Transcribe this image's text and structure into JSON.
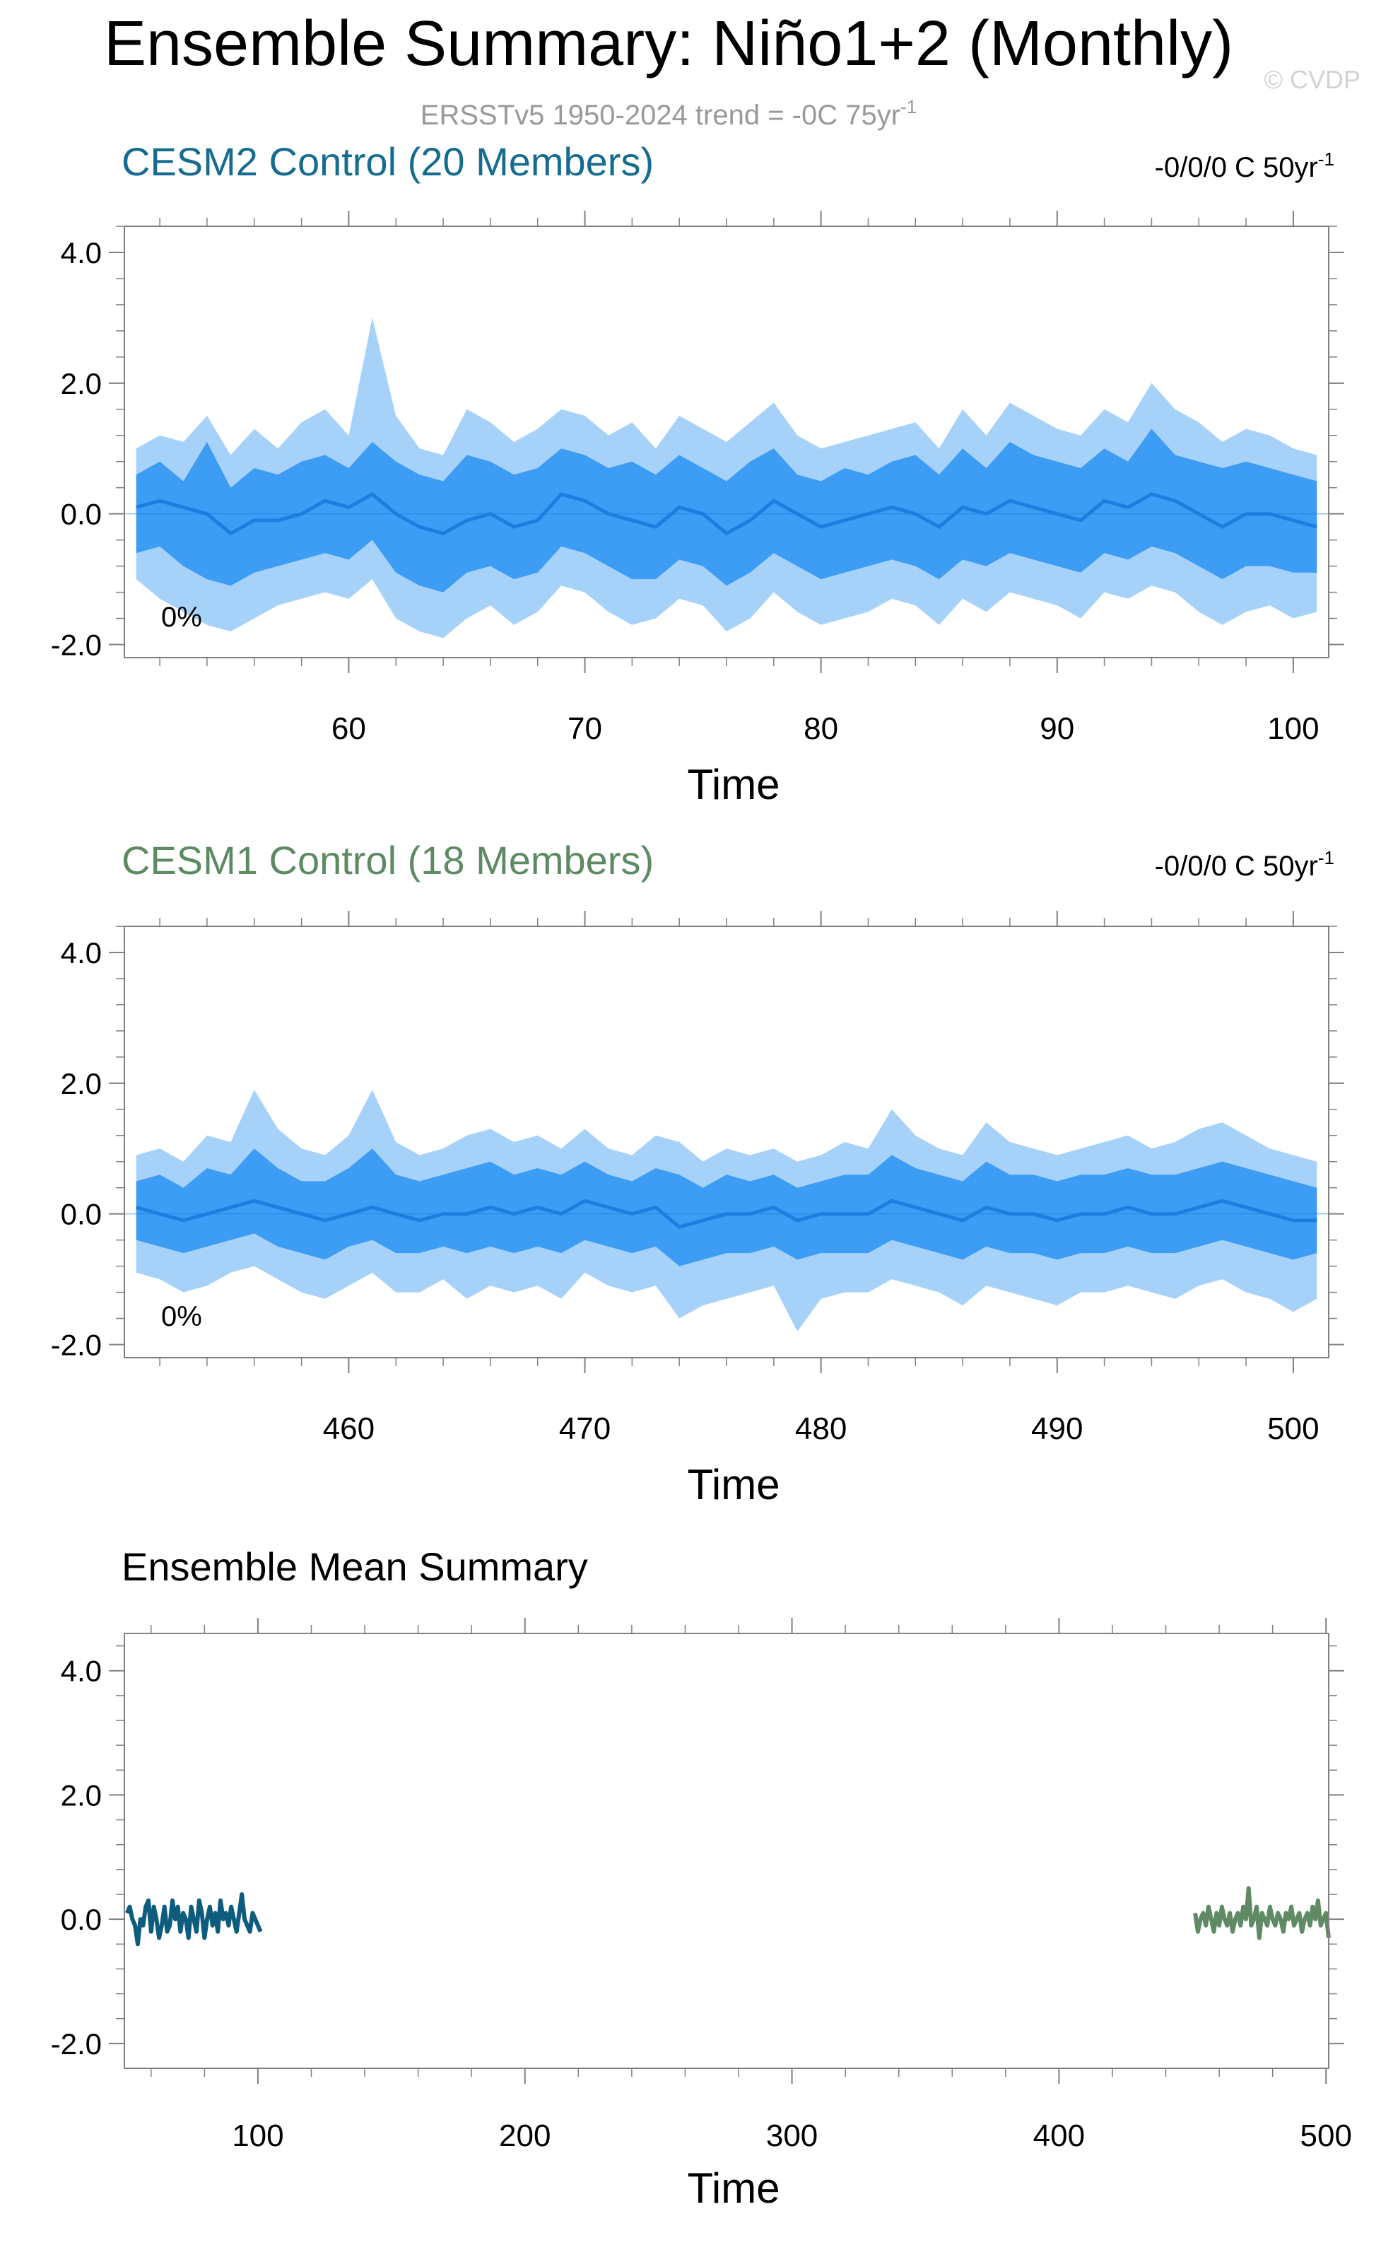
{
  "figure": {
    "title": "Ensemble Summary: Niño1+2 (Monthly)",
    "subtitle_prefix": "ERSSTv5 1950-2024 trend = -0C 75yr",
    "subtitle_sup": "-1",
    "watermark": "© CVDP"
  },
  "colors": {
    "title": "#000000",
    "subtitle": "#999999",
    "watermark": "#d3d3d3",
    "cesm2_label": "#156c8f",
    "cesm1_label": "#5e8a63",
    "band_outer": "#a6d2fa",
    "band_inner": "#3d9cf4",
    "mean_line": "#1c7fe0",
    "cesm2_series": "#0d5c7d",
    "cesm1_series": "#5f8a64",
    "axis": "#808080"
  },
  "chart_data": [
    {
      "type": "area",
      "title": "CESM2 Control (20 Members)",
      "trend_text": "-0/0/0 C 50yr",
      "trend_sup": "-1",
      "pct_label": "0%",
      "xlabel": "Time",
      "ylabel": "",
      "xlim": [
        50.5,
        101.5
      ],
      "ylim": [
        -2.2,
        4.4
      ],
      "xticks": [
        60,
        70,
        80,
        90,
        100
      ],
      "yticks": [
        4.0,
        2.0,
        0.0,
        -2.0
      ],
      "ytick_labels": [
        "4.0",
        "2.0",
        "0.0",
        "-2.0"
      ],
      "grid": false,
      "x": [
        51,
        52,
        53,
        54,
        55,
        56,
        57,
        58,
        59,
        60,
        61,
        62,
        63,
        64,
        65,
        66,
        67,
        68,
        69,
        70,
        71,
        72,
        73,
        74,
        75,
        76,
        77,
        78,
        79,
        80,
        81,
        82,
        83,
        84,
        85,
        86,
        87,
        88,
        89,
        90,
        91,
        92,
        93,
        94,
        95,
        96,
        97,
        98,
        99,
        100,
        101
      ],
      "series": [
        {
          "role": "outer_upper",
          "values": [
            1.0,
            1.2,
            1.1,
            1.5,
            0.9,
            1.3,
            1.0,
            1.4,
            1.6,
            1.2,
            3.0,
            1.5,
            1.0,
            0.9,
            1.6,
            1.4,
            1.1,
            1.3,
            1.6,
            1.5,
            1.2,
            1.4,
            1.0,
            1.5,
            1.3,
            1.1,
            1.4,
            1.7,
            1.2,
            1.0,
            1.1,
            1.2,
            1.3,
            1.4,
            1.0,
            1.6,
            1.2,
            1.7,
            1.5,
            1.3,
            1.2,
            1.6,
            1.4,
            2.0,
            1.6,
            1.4,
            1.1,
            1.3,
            1.2,
            1.0,
            0.9
          ]
        },
        {
          "role": "inner_upper",
          "values": [
            0.6,
            0.8,
            0.5,
            1.1,
            0.4,
            0.7,
            0.6,
            0.8,
            0.9,
            0.7,
            1.1,
            0.8,
            0.6,
            0.5,
            0.9,
            0.8,
            0.6,
            0.7,
            1.0,
            0.9,
            0.7,
            0.8,
            0.6,
            0.9,
            0.7,
            0.5,
            0.8,
            1.0,
            0.6,
            0.5,
            0.7,
            0.6,
            0.8,
            0.9,
            0.6,
            1.0,
            0.7,
            1.1,
            0.9,
            0.8,
            0.7,
            1.0,
            0.8,
            1.3,
            0.9,
            0.8,
            0.7,
            0.8,
            0.7,
            0.6,
            0.5
          ]
        },
        {
          "role": "mean",
          "values": [
            0.1,
            0.2,
            0.1,
            0.0,
            -0.3,
            -0.1,
            -0.1,
            0.0,
            0.2,
            0.1,
            0.3,
            0.0,
            -0.2,
            -0.3,
            -0.1,
            0.0,
            -0.2,
            -0.1,
            0.3,
            0.2,
            0.0,
            -0.1,
            -0.2,
            0.1,
            0.0,
            -0.3,
            -0.1,
            0.2,
            0.0,
            -0.2,
            -0.1,
            0.0,
            0.1,
            0.0,
            -0.2,
            0.1,
            0.0,
            0.2,
            0.1,
            0.0,
            -0.1,
            0.2,
            0.1,
            0.3,
            0.2,
            0.0,
            -0.2,
            0.0,
            0.0,
            -0.1,
            -0.2
          ]
        },
        {
          "role": "inner_lower",
          "values": [
            -0.6,
            -0.5,
            -0.8,
            -1.0,
            -1.1,
            -0.9,
            -0.8,
            -0.7,
            -0.6,
            -0.7,
            -0.4,
            -0.9,
            -1.1,
            -1.2,
            -0.9,
            -0.8,
            -1.0,
            -0.9,
            -0.5,
            -0.6,
            -0.8,
            -1.0,
            -1.0,
            -0.7,
            -0.8,
            -1.1,
            -0.9,
            -0.6,
            -0.8,
            -1.0,
            -0.9,
            -0.8,
            -0.7,
            -0.8,
            -1.0,
            -0.7,
            -0.8,
            -0.6,
            -0.7,
            -0.8,
            -0.9,
            -0.6,
            -0.7,
            -0.5,
            -0.6,
            -0.8,
            -1.0,
            -0.8,
            -0.8,
            -0.9,
            -0.9
          ]
        },
        {
          "role": "outer_lower",
          "values": [
            -1.0,
            -1.3,
            -1.5,
            -1.7,
            -1.8,
            -1.6,
            -1.4,
            -1.3,
            -1.2,
            -1.3,
            -1.0,
            -1.6,
            -1.8,
            -1.9,
            -1.6,
            -1.4,
            -1.7,
            -1.5,
            -1.1,
            -1.2,
            -1.5,
            -1.7,
            -1.6,
            -1.3,
            -1.4,
            -1.8,
            -1.6,
            -1.2,
            -1.5,
            -1.7,
            -1.6,
            -1.5,
            -1.3,
            -1.4,
            -1.7,
            -1.3,
            -1.5,
            -1.2,
            -1.3,
            -1.4,
            -1.6,
            -1.2,
            -1.3,
            -1.1,
            -1.2,
            -1.5,
            -1.7,
            -1.5,
            -1.4,
            -1.6,
            -1.5
          ]
        }
      ]
    },
    {
      "type": "area",
      "title": "CESM1 Control (18 Members)",
      "trend_text": "-0/0/0 C 50yr",
      "trend_sup": "-1",
      "pct_label": "0%",
      "xlabel": "Time",
      "ylabel": "",
      "xlim": [
        450.5,
        501.5
      ],
      "ylim": [
        -2.2,
        4.4
      ],
      "xticks": [
        460,
        470,
        480,
        490,
        500
      ],
      "yticks": [
        4.0,
        2.0,
        0.0,
        -2.0
      ],
      "ytick_labels": [
        "4.0",
        "2.0",
        "0.0",
        "-2.0"
      ],
      "grid": false,
      "x": [
        451,
        452,
        453,
        454,
        455,
        456,
        457,
        458,
        459,
        460,
        461,
        462,
        463,
        464,
        465,
        466,
        467,
        468,
        469,
        470,
        471,
        472,
        473,
        474,
        475,
        476,
        477,
        478,
        479,
        480,
        481,
        482,
        483,
        484,
        485,
        486,
        487,
        488,
        489,
        490,
        491,
        492,
        493,
        494,
        495,
        496,
        497,
        498,
        499,
        500,
        501
      ],
      "series": [
        {
          "role": "outer_upper",
          "values": [
            0.9,
            1.0,
            0.8,
            1.2,
            1.1,
            1.9,
            1.3,
            1.0,
            0.9,
            1.2,
            1.9,
            1.1,
            0.9,
            1.0,
            1.2,
            1.3,
            1.1,
            1.2,
            1.0,
            1.3,
            1.0,
            0.9,
            1.2,
            1.1,
            0.8,
            1.0,
            0.9,
            1.0,
            0.8,
            0.9,
            1.1,
            1.0,
            1.6,
            1.2,
            1.0,
            0.9,
            1.4,
            1.1,
            1.0,
            0.9,
            1.0,
            1.1,
            1.2,
            1.0,
            1.1,
            1.3,
            1.4,
            1.2,
            1.0,
            0.9,
            0.8
          ]
        },
        {
          "role": "inner_upper",
          "values": [
            0.5,
            0.6,
            0.4,
            0.7,
            0.6,
            1.0,
            0.7,
            0.5,
            0.5,
            0.7,
            1.0,
            0.6,
            0.5,
            0.6,
            0.7,
            0.8,
            0.6,
            0.7,
            0.6,
            0.8,
            0.6,
            0.5,
            0.7,
            0.6,
            0.4,
            0.6,
            0.5,
            0.6,
            0.4,
            0.5,
            0.6,
            0.6,
            0.9,
            0.7,
            0.6,
            0.5,
            0.8,
            0.6,
            0.6,
            0.5,
            0.6,
            0.6,
            0.7,
            0.6,
            0.6,
            0.7,
            0.8,
            0.7,
            0.6,
            0.5,
            0.4
          ]
        },
        {
          "role": "mean",
          "values": [
            0.1,
            0.0,
            -0.1,
            0.0,
            0.1,
            0.2,
            0.1,
            0.0,
            -0.1,
            0.0,
            0.1,
            0.0,
            -0.1,
            0.0,
            0.0,
            0.1,
            0.0,
            0.1,
            0.0,
            0.2,
            0.1,
            0.0,
            0.1,
            -0.2,
            -0.1,
            0.0,
            0.0,
            0.1,
            -0.1,
            0.0,
            0.0,
            0.0,
            0.2,
            0.1,
            0.0,
            -0.1,
            0.1,
            0.0,
            0.0,
            -0.1,
            0.0,
            0.0,
            0.1,
            0.0,
            0.0,
            0.1,
            0.2,
            0.1,
            0.0,
            -0.1,
            -0.1
          ]
        },
        {
          "role": "inner_lower",
          "values": [
            -0.4,
            -0.5,
            -0.6,
            -0.5,
            -0.4,
            -0.3,
            -0.5,
            -0.6,
            -0.7,
            -0.5,
            -0.4,
            -0.6,
            -0.6,
            -0.5,
            -0.6,
            -0.5,
            -0.6,
            -0.5,
            -0.6,
            -0.4,
            -0.5,
            -0.6,
            -0.5,
            -0.8,
            -0.7,
            -0.6,
            -0.6,
            -0.5,
            -0.7,
            -0.6,
            -0.6,
            -0.6,
            -0.4,
            -0.5,
            -0.6,
            -0.7,
            -0.5,
            -0.6,
            -0.6,
            -0.7,
            -0.6,
            -0.6,
            -0.5,
            -0.6,
            -0.6,
            -0.5,
            -0.4,
            -0.5,
            -0.6,
            -0.7,
            -0.6
          ]
        },
        {
          "role": "outer_lower",
          "values": [
            -0.9,
            -1.0,
            -1.2,
            -1.1,
            -0.9,
            -0.8,
            -1.0,
            -1.2,
            -1.3,
            -1.1,
            -0.9,
            -1.2,
            -1.2,
            -1.0,
            -1.3,
            -1.1,
            -1.2,
            -1.1,
            -1.3,
            -0.9,
            -1.1,
            -1.2,
            -1.1,
            -1.6,
            -1.4,
            -1.3,
            -1.2,
            -1.1,
            -1.8,
            -1.3,
            -1.2,
            -1.2,
            -1.0,
            -1.1,
            -1.2,
            -1.4,
            -1.1,
            -1.2,
            -1.3,
            -1.4,
            -1.2,
            -1.2,
            -1.1,
            -1.2,
            -1.3,
            -1.1,
            -1.0,
            -1.2,
            -1.3,
            -1.5,
            -1.3
          ]
        }
      ]
    },
    {
      "type": "line",
      "title": "Ensemble Mean Summary",
      "xlabel": "Time",
      "ylabel": "",
      "xlim": [
        50,
        501
      ],
      "ylim": [
        -2.4,
        4.6
      ],
      "xticks": [
        100,
        200,
        300,
        400,
        500
      ],
      "yticks": [
        4.0,
        2.0,
        0.0,
        -2.0
      ],
      "ytick_labels": [
        "4.0",
        "2.0",
        "0.0",
        "-2.0"
      ],
      "grid": false,
      "series": [
        {
          "color_key": "cesm2_series",
          "x": [
            51,
            52,
            53,
            54,
            55,
            56,
            57,
            58,
            59,
            60,
            61,
            62,
            63,
            64,
            65,
            66,
            67,
            68,
            69,
            70,
            71,
            72,
            73,
            74,
            75,
            76,
            77,
            78,
            79,
            80,
            81,
            82,
            83,
            84,
            85,
            86,
            87,
            88,
            89,
            90,
            91,
            92,
            93,
            94,
            95,
            96,
            97,
            98,
            99,
            100,
            101
          ],
          "values": [
            0.1,
            0.2,
            0.0,
            -0.1,
            -0.4,
            0.0,
            -0.1,
            0.2,
            0.3,
            -0.2,
            0.2,
            0.0,
            -0.3,
            -0.1,
            0.2,
            -0.2,
            -0.1,
            0.3,
            0.0,
            0.2,
            -0.2,
            0.1,
            0.0,
            -0.3,
            0.2,
            0.0,
            -0.2,
            0.3,
            0.1,
            -0.3,
            0.0,
            0.2,
            -0.1,
            0.1,
            -0.2,
            0.3,
            0.0,
            0.1,
            -0.1,
            0.2,
            0.0,
            -0.2,
            0.1,
            0.4,
            0.0,
            -0.1,
            -0.2,
            0.1,
            0.0,
            -0.1,
            -0.2
          ]
        },
        {
          "color_key": "cesm1_series",
          "x": [
            451,
            452,
            453,
            454,
            455,
            456,
            457,
            458,
            459,
            460,
            461,
            462,
            463,
            464,
            465,
            466,
            467,
            468,
            469,
            470,
            471,
            472,
            473,
            474,
            475,
            476,
            477,
            478,
            479,
            480,
            481,
            482,
            483,
            484,
            485,
            486,
            487,
            488,
            489,
            490,
            491,
            492,
            493,
            494,
            495,
            496,
            497,
            498,
            499,
            500,
            501
          ],
          "values": [
            0.1,
            -0.2,
            0.0,
            0.1,
            -0.1,
            0.2,
            0.0,
            -0.2,
            0.1,
            -0.1,
            0.2,
            0.0,
            -0.1,
            0.1,
            -0.2,
            0.0,
            0.1,
            -0.1,
            0.2,
            0.0,
            0.5,
            -0.1,
            0.0,
            0.2,
            -0.3,
            0.1,
            0.0,
            -0.1,
            0.2,
            0.0,
            -0.1,
            0.1,
            0.0,
            -0.2,
            0.1,
            0.0,
            0.2,
            -0.1,
            0.0,
            0.1,
            -0.2,
            0.0,
            0.1,
            -0.1,
            0.2,
            0.0,
            0.3,
            -0.1,
            0.0,
            0.1,
            -0.3
          ]
        }
      ]
    }
  ]
}
